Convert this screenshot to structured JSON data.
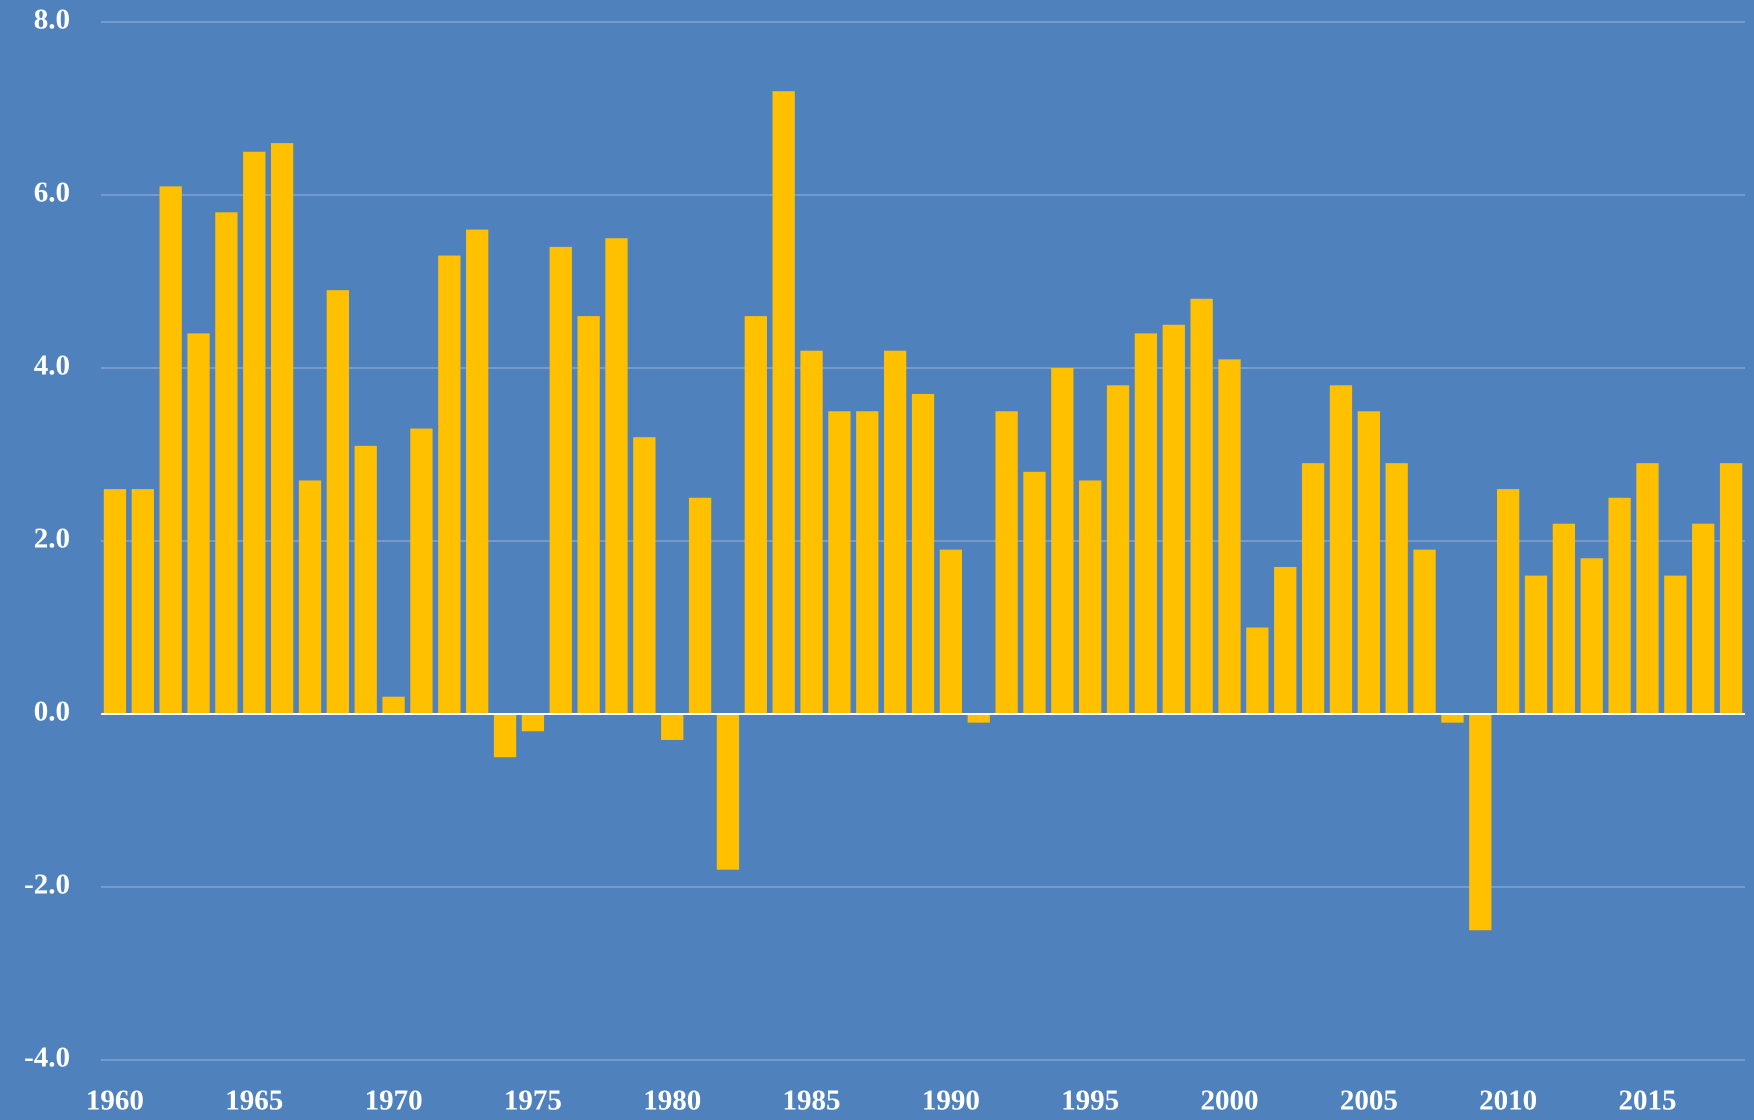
{
  "chart_data": {
    "type": "bar",
    "categories": [
      "1960",
      null,
      null,
      null,
      null,
      "1965",
      null,
      null,
      null,
      null,
      "1970",
      null,
      null,
      null,
      null,
      "1975",
      null,
      null,
      null,
      null,
      "1980",
      null,
      null,
      null,
      null,
      "1985",
      null,
      null,
      null,
      null,
      "1990",
      null,
      null,
      null,
      null,
      "1995",
      null,
      null,
      null,
      null,
      "2000",
      null,
      null,
      null,
      null,
      "2005",
      null,
      null,
      null,
      null,
      "2010",
      null,
      null,
      null,
      null,
      "2015",
      null,
      null,
      null
    ],
    "values": [
      2.6,
      2.6,
      6.1,
      4.4,
      5.8,
      6.5,
      6.6,
      2.7,
      4.9,
      3.1,
      0.2,
      3.3,
      5.3,
      5.6,
      -0.5,
      -0.2,
      5.4,
      4.6,
      5.5,
      3.2,
      -0.3,
      2.5,
      -1.8,
      4.6,
      7.2,
      4.2,
      3.5,
      3.5,
      4.2,
      3.7,
      1.9,
      -0.1,
      3.5,
      2.8,
      4.0,
      2.7,
      3.8,
      4.4,
      4.5,
      4.8,
      4.1,
      1.0,
      1.7,
      2.9,
      3.8,
      3.5,
      2.9,
      1.9,
      -0.1,
      -2.5,
      2.6,
      1.6,
      2.2,
      1.8,
      2.5,
      2.9,
      1.6,
      2.2,
      2.9
    ],
    "color": "#ffc000",
    "background": "#4f81bd",
    "ylim": [
      -4,
      8
    ],
    "yticks": [
      {
        "value": -4,
        "label": "-4.0"
      },
      {
        "value": -2,
        "label": "-2.0"
      },
      {
        "value": 0,
        "label": "0.0"
      },
      {
        "value": 2,
        "label": "2.0"
      },
      {
        "value": 4,
        "label": "4.0"
      },
      {
        "value": 6,
        "label": "6.0"
      },
      {
        "value": 8,
        "label": "8.0"
      }
    ],
    "grid": true
  }
}
